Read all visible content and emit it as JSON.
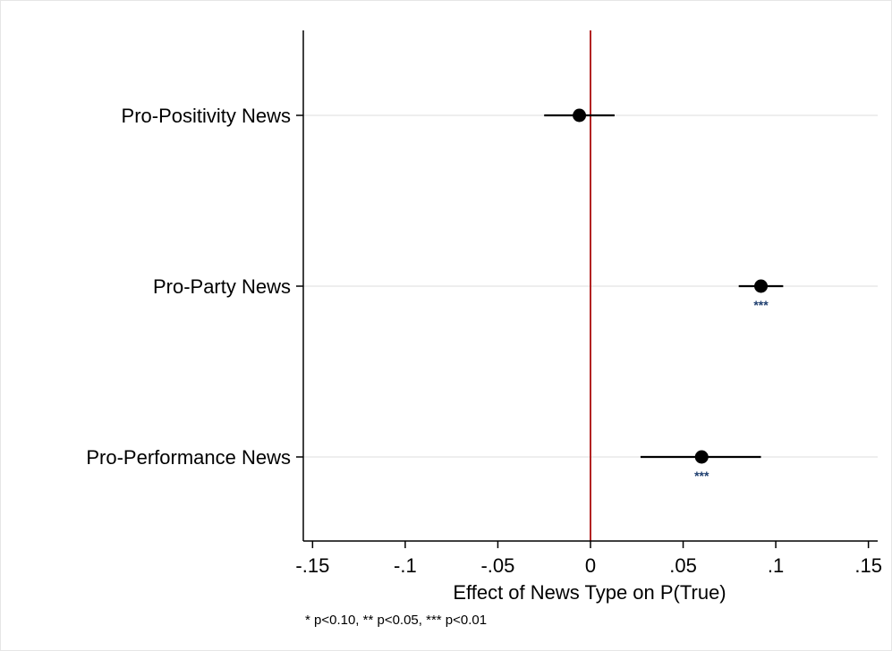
{
  "chart_data": {
    "type": "scatter",
    "subtype": "coefficient-plot",
    "title": "",
    "xlabel": "Effect of News Type on P(True)",
    "ylabel": "",
    "xlim": [
      -0.155,
      0.155
    ],
    "xticks": [
      -0.15,
      -0.1,
      -0.05,
      0,
      0.05,
      0.1,
      0.15
    ],
    "xtick_labels": [
      "-.15",
      "-.1",
      "-.05",
      "0",
      ".05",
      ".1",
      ".15"
    ],
    "reference_line": {
      "x": 0,
      "color": "#b22222"
    },
    "grid": "horizontal",
    "categories": [
      "Pro-Positivity News",
      "Pro-Party News",
      "Pro-Performance News"
    ],
    "estimates": [
      -0.006,
      0.092,
      0.06
    ],
    "ci_low": [
      -0.025,
      0.08,
      0.027
    ],
    "ci_high": [
      0.013,
      0.104,
      0.092
    ],
    "significance": [
      "",
      "***",
      "***"
    ],
    "note": "* p<0.10, ** p<0.05, *** p<0.01",
    "colors": {
      "marker": "#000000",
      "significance": "#1f3f6f",
      "gridline": "#e8e8e8"
    }
  }
}
